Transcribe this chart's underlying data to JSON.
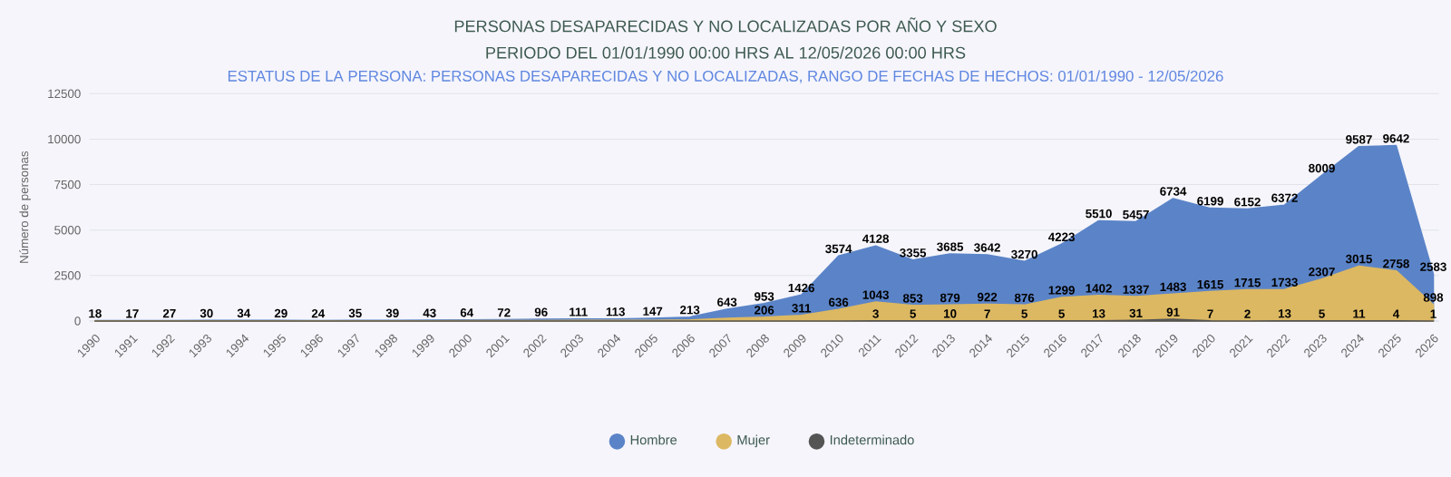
{
  "chart_data": {
    "type": "area",
    "title": "PERSONAS DESAPARECIDAS Y NO LOCALIZADAS POR AÑO Y SEXO",
    "subtitle": "PERIODO DEL 01/01/1990 00:00 HRS AL 12/05/2026 00:00 HRS",
    "annotations": [
      "ESTATUS DE LA PERSONA: PERSONAS DESAPARECIDAS Y NO LOCALIZADAS, RANGO DE FECHAS DE HECHOS: 01/01/1990 - 12/05/2026"
    ],
    "ylabel": "Número de personas",
    "categories": [
      "1990",
      "1991",
      "1992",
      "1993",
      "1994",
      "1995",
      "1996",
      "1997",
      "1998",
      "1999",
      "2000",
      "2001",
      "2002",
      "2003",
      "2004",
      "2005",
      "2006",
      "2007",
      "2008",
      "2009",
      "2010",
      "2011",
      "2012",
      "2013",
      "2014",
      "2015",
      "2016",
      "2017",
      "2018",
      "2019",
      "2020",
      "2021",
      "2022",
      "2023",
      "2024",
      "2025",
      "2026"
    ],
    "series": [
      {
        "name": "Hombre",
        "color": "#5b84c8",
        "values": [
          18,
          17,
          27,
          30,
          34,
          29,
          24,
          35,
          39,
          43,
          64,
          72,
          96,
          111,
          113,
          147,
          213,
          643,
          953,
          1426,
          3574,
          4128,
          3355,
          3685,
          3642,
          3270,
          4223,
          5510,
          5457,
          6734,
          6199,
          6152,
          6372,
          8009,
          9587,
          9642,
          2583
        ],
        "value_labels": [
          "18",
          "17",
          "27",
          "30",
          "34",
          "29",
          "24",
          "35",
          "39",
          "43",
          "64",
          "72",
          "96",
          "111",
          "113",
          "147",
          "213",
          "643",
          "953",
          "1426",
          "3574",
          "4128",
          "3355",
          "3685",
          "3642",
          "3270",
          "4223",
          "5510",
          "5457",
          "6734",
          "6199",
          "6152",
          "6372",
          "8009",
          "9587",
          "9642",
          "2583"
        ]
      },
      {
        "name": "Mujer",
        "color": "#dcb862",
        "values": [
          5,
          4,
          6,
          8,
          9,
          7,
          6,
          9,
          10,
          11,
          16,
          18,
          24,
          28,
          29,
          37,
          55,
          150,
          206,
          311,
          636,
          1043,
          853,
          879,
          922,
          876,
          1299,
          1402,
          1337,
          1483,
          1615,
          1715,
          1733,
          2307,
          3015,
          2758,
          898
        ],
        "value_labels": [
          null,
          null,
          null,
          null,
          null,
          null,
          null,
          null,
          null,
          null,
          null,
          null,
          null,
          null,
          null,
          null,
          null,
          null,
          "206",
          "311",
          "636",
          "1043",
          "853",
          "879",
          "922",
          "876",
          "1299",
          "1402",
          "1337",
          "1483",
          "1615",
          "1715",
          "1733",
          "2307",
          "3015",
          "2758",
          "898"
        ]
      },
      {
        "name": "Indeterminado",
        "color": "#555555",
        "values": [
          0,
          0,
          0,
          0,
          0,
          0,
          0,
          0,
          0,
          0,
          0,
          0,
          0,
          0,
          0,
          0,
          0,
          0,
          0,
          0,
          1,
          3,
          5,
          10,
          7,
          5,
          5,
          13,
          31,
          91,
          7,
          2,
          13,
          5,
          11,
          4,
          1
        ],
        "value_labels": [
          null,
          null,
          null,
          null,
          null,
          null,
          null,
          null,
          null,
          null,
          null,
          null,
          null,
          null,
          null,
          null,
          null,
          null,
          null,
          null,
          null,
          "3",
          "5",
          "10",
          "7",
          "5",
          "5",
          "13",
          "31",
          "91",
          "7",
          "2",
          "13",
          "5",
          "11",
          "4",
          "1"
        ]
      }
    ],
    "ylim": [
      0,
      12500
    ],
    "yticks": [
      0,
      2500,
      5000,
      7500,
      10000,
      12500
    ],
    "grid": "y",
    "legend": "bottom"
  }
}
